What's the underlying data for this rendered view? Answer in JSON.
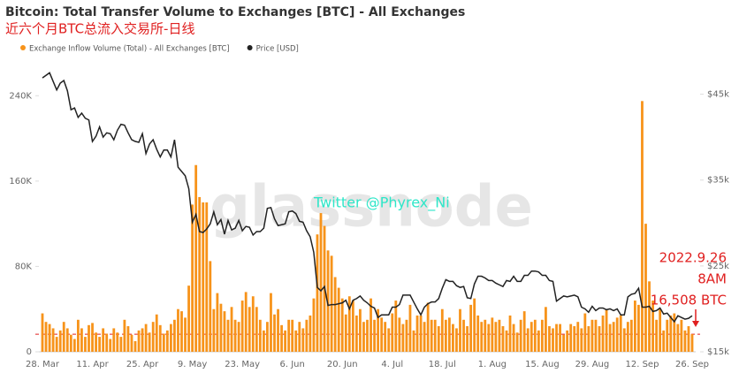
{
  "chart_data": {
    "type": "bar",
    "title": "Bitcoin: Total Transfer Volume to Exchanges [BTC] - All Exchanges",
    "subtitle": "近六个月BTC总流入交易所-日线",
    "watermark": "glassnode",
    "credit": "Twitter @Phyrex_Ni",
    "annotation": {
      "value": 16508,
      "lines": [
        "2022.9.26",
        "8AM",
        "16,508 BTC"
      ],
      "color": "#e02020"
    },
    "categories": [
      "28. Mar",
      null,
      null,
      null,
      null,
      null,
      null,
      null,
      null,
      null,
      null,
      null,
      null,
      null,
      "11. Apr",
      null,
      null,
      null,
      null,
      null,
      null,
      null,
      null,
      null,
      null,
      null,
      null,
      null,
      "25. Apr",
      null,
      null,
      null,
      null,
      null,
      null,
      null,
      null,
      null,
      null,
      null,
      null,
      null,
      "9. May",
      null,
      null,
      null,
      null,
      null,
      null,
      null,
      null,
      null,
      null,
      null,
      null,
      null,
      "23. May",
      null,
      null,
      null,
      null,
      null,
      null,
      null,
      null,
      null,
      null,
      null,
      null,
      null,
      "6. Jun",
      null,
      null,
      null,
      null,
      null,
      null,
      null,
      null,
      null,
      null,
      null,
      null,
      null,
      "20. Jun",
      null,
      null,
      null,
      null,
      null,
      null,
      null,
      null,
      null,
      null,
      null,
      null,
      null,
      "4. Jul",
      null,
      null,
      null,
      null,
      null,
      null,
      null,
      null,
      null,
      null,
      null,
      null,
      null,
      "18. Jul",
      null,
      null,
      null,
      null,
      null,
      null,
      null,
      null,
      null,
      null,
      null,
      null,
      null,
      "1. Aug",
      null,
      null,
      null,
      null,
      null,
      null,
      null,
      null,
      null,
      null,
      null,
      null,
      null,
      "15. Aug",
      null,
      null,
      null,
      null,
      null,
      null,
      null,
      null,
      null,
      null,
      null,
      null,
      null,
      "29. Aug",
      null,
      null,
      null,
      null,
      null,
      null,
      null,
      null,
      null,
      null,
      null,
      null,
      null,
      "12. Sep",
      null,
      null,
      null,
      null,
      null,
      null,
      null,
      null,
      null,
      null,
      null,
      null,
      null,
      "26. Sep"
    ],
    "series": [
      {
        "name": "Exchange Inflow Volume (Total) - All Exchanges [BTC]",
        "type": "bar",
        "color": "#f7931a",
        "values": [
          36000,
          28000,
          26000,
          22000,
          14000,
          20000,
          28000,
          22000,
          16000,
          12000,
          30000,
          22000,
          14000,
          25000,
          27000,
          18000,
          14000,
          22000,
          17000,
          12000,
          22000,
          18000,
          14000,
          30000,
          24000,
          16000,
          10000,
          20000,
          22000,
          26000,
          18000,
          28000,
          35000,
          25000,
          17000,
          20000,
          26000,
          30000,
          40000,
          38000,
          32000,
          62000,
          138000,
          175000,
          145000,
          140000,
          140000,
          85000,
          40000,
          55000,
          45000,
          38000,
          30000,
          42000,
          30000,
          28000,
          48000,
          56000,
          42000,
          52000,
          42000,
          30000,
          20000,
          28000,
          55000,
          35000,
          40000,
          25000,
          20000,
          30000,
          30000,
          20000,
          28000,
          22000,
          30000,
          34000,
          50000,
          110000,
          130000,
          118000,
          95000,
          90000,
          70000,
          60000,
          50000,
          35000,
          52000,
          48000,
          34000,
          40000,
          28000,
          30000,
          50000,
          30000,
          40000,
          32000,
          28000,
          22000,
          36000,
          48000,
          32000,
          26000,
          30000,
          44000,
          20000,
          34000,
          34000,
          28000,
          46000,
          30000,
          30000,
          24000,
          40000,
          30000,
          32000,
          26000,
          22000,
          40000,
          30000,
          24000,
          44000,
          50000,
          34000,
          28000,
          30000,
          26000,
          32000,
          28000,
          30000,
          24000,
          20000,
          34000,
          26000,
          18000,
          30000,
          38000,
          22000,
          28000,
          30000,
          20000,
          30000,
          42000,
          24000,
          22000,
          26000,
          26000,
          16000,
          20000,
          26000,
          24000,
          28000,
          22000,
          36000,
          24000,
          30000,
          30000,
          24000,
          34000,
          40000,
          26000,
          28000,
          32000,
          34000,
          22000,
          28000,
          30000,
          48000,
          44000,
          235000,
          120000,
          66000,
          48000,
          30000,
          40000,
          20000,
          30000,
          34000,
          36000,
          26000,
          30000,
          20000,
          24000,
          16508
        ]
      },
      {
        "name": "Price [USD]",
        "type": "line",
        "axis": "y2",
        "color": "#222222",
        "values": [
          46900,
          47200,
          47500,
          46500,
          45500,
          46300,
          46600,
          45400,
          43200,
          43400,
          42300,
          42800,
          42200,
          42000,
          39500,
          40100,
          41200,
          40000,
          40500,
          40400,
          39700,
          40800,
          41500,
          41400,
          40500,
          39700,
          39500,
          39400,
          40400,
          38100,
          39200,
          39700,
          38600,
          37700,
          38500,
          38500,
          37700,
          39700,
          36500,
          36000,
          35500,
          34000,
          30100,
          31000,
          29000,
          28900,
          29300,
          29900,
          31300,
          29800,
          30400,
          28700,
          30300,
          29200,
          29400,
          30300,
          29100,
          29600,
          29500,
          28600,
          29000,
          29000,
          29400,
          31700,
          31800,
          30500,
          29700,
          29800,
          29900,
          31300,
          31400,
          31100,
          30200,
          30100,
          29100,
          28400,
          26600,
          22500,
          22100,
          22600,
          20400,
          20500,
          20500,
          20600,
          20700,
          21000,
          20000,
          21000,
          21200,
          21500,
          21000,
          20700,
          20300,
          20100,
          19000,
          19300,
          19300,
          19300,
          20200,
          20200,
          20500,
          21600,
          21600,
          21600,
          20800,
          20000,
          19300,
          20200,
          20600,
          20800,
          20800,
          21200,
          22400,
          23400,
          23200,
          23200,
          22700,
          22500,
          22600,
          21300,
          21200,
          22900,
          23800,
          23800,
          23600,
          23300,
          23300,
          23000,
          22800,
          22600,
          23300,
          23200,
          23800,
          23200,
          23200,
          23900,
          23900,
          24400,
          24400,
          24300,
          23900,
          23900,
          23300,
          23200,
          20900,
          21200,
          21500,
          21400,
          21500,
          21600,
          21400,
          20200,
          20000,
          19600,
          20300,
          19800,
          20100,
          20100,
          19900,
          20000,
          19800,
          20000,
          19300,
          19300,
          21400,
          21700,
          21800,
          22400,
          20200,
          20200,
          20300,
          19700,
          19800,
          20100,
          19400,
          19500,
          19000,
          18500,
          19200,
          19000,
          18800,
          18900,
          19200
        ]
      }
    ],
    "ylim": [
      0,
      280000
    ],
    "yticks": [
      0,
      {
        "value": 80000,
        "label": "80K"
      },
      {
        "value": 160000,
        "label": "160K"
      },
      {
        "value": 240000,
        "label": "240K"
      }
    ],
    "y2lim": [
      15000,
      49800
    ],
    "y2ticks": [
      {
        "value": 15000,
        "label": "$15k"
      },
      {
        "value": 25000,
        "label": "$25k"
      },
      {
        "value": 35000,
        "label": "$35k"
      },
      {
        "value": 45000,
        "label": "$45k"
      }
    ],
    "legend": "top-left"
  }
}
